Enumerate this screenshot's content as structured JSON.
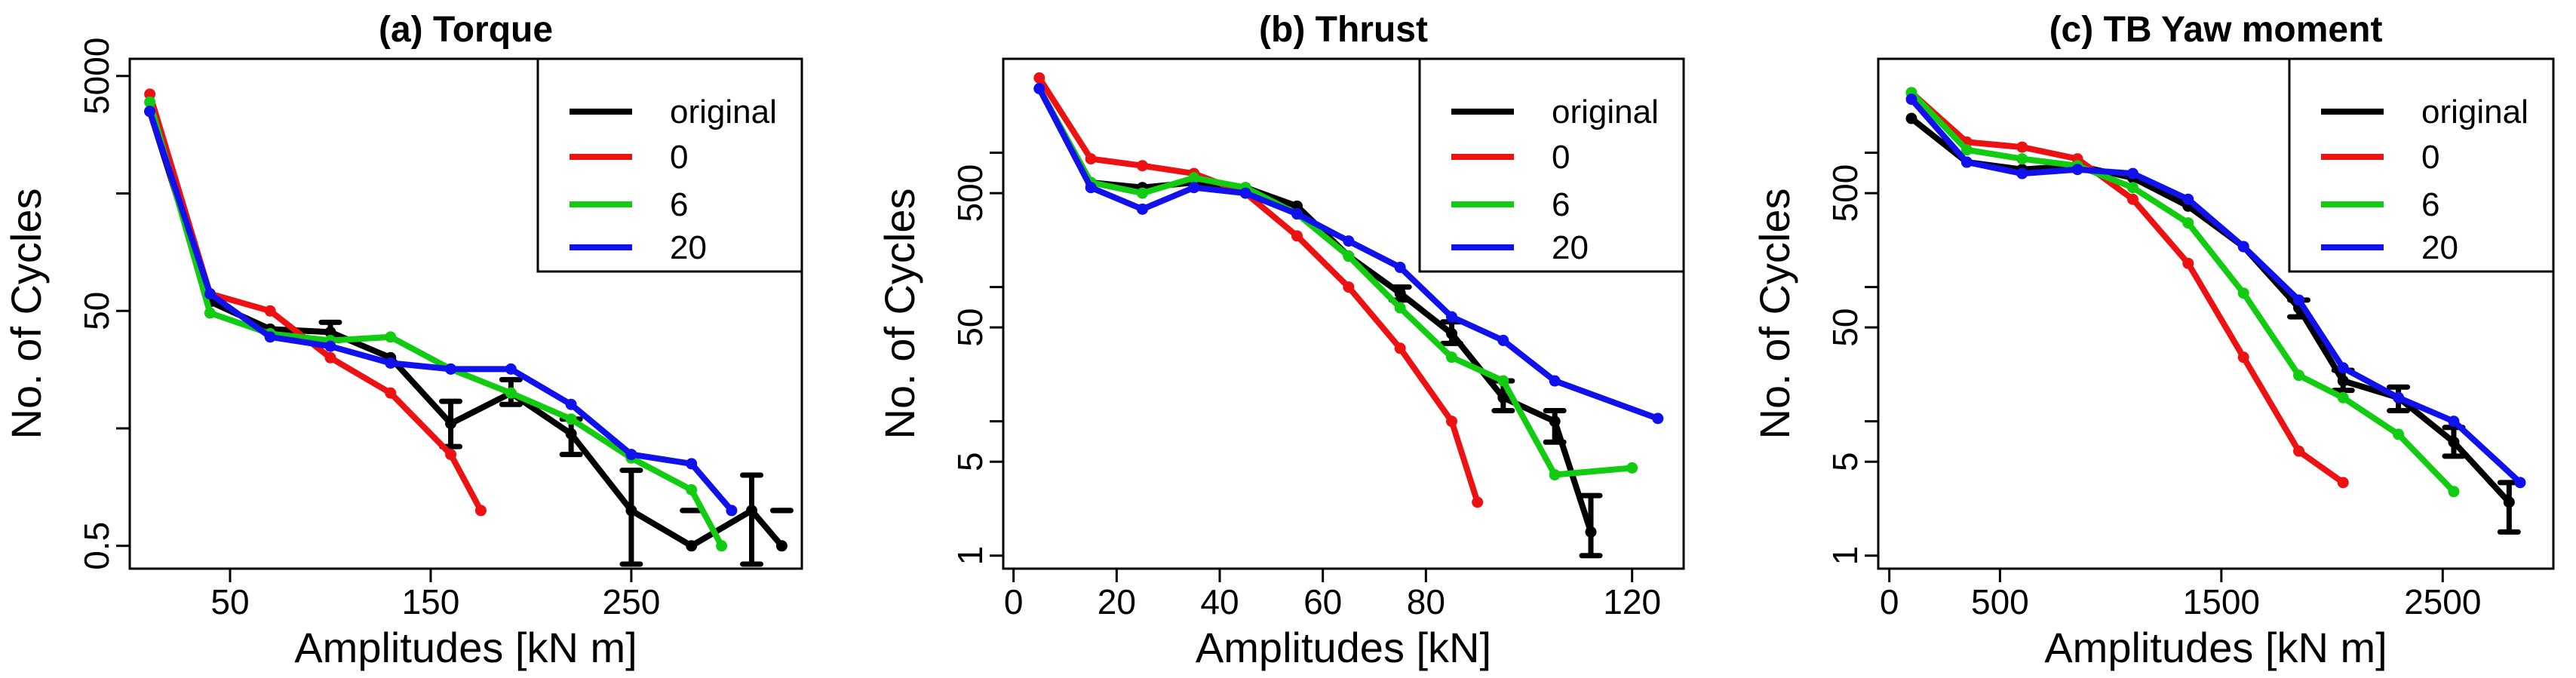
{
  "chart_data": [
    {
      "type": "line",
      "title": "(a) Torque",
      "xlabel": "Amplitudes [kN m]",
      "ylabel": "No. of Cycles",
      "yscale": "log",
      "xlim": [
        0,
        335
      ],
      "ylim": [
        0.32,
        7000
      ],
      "xticks": [
        50,
        150,
        250
      ],
      "xtick_labels": [
        "50",
        "150",
        "250"
      ],
      "yticks": [
        0.5,
        50,
        5000
      ],
      "ytick_labels": [
        "0.5",
        "50",
        "5000"
      ],
      "legend": {
        "position": "top-right",
        "entries": [
          "original",
          "0",
          "6",
          "20"
        ]
      },
      "series": [
        {
          "name": "original",
          "color": "#000000",
          "x": [
            10,
            40,
            70,
            100,
            130,
            160,
            190,
            220,
            250,
            280,
            310,
            325
          ],
          "y": [
            2500,
            60,
            35,
            33,
            20,
            5.5,
            10,
            4.5,
            1.0,
            0.5,
            1.0,
            0.5
          ],
          "error_bars": [
            {
              "x": 100,
              "lo": 28,
              "hi": 40
            },
            {
              "x": 160,
              "lo": 3.5,
              "hi": 8.5
            },
            {
              "x": 190,
              "lo": 8,
              "hi": 13
            },
            {
              "x": 220,
              "lo": 3.0,
              "hi": 6.0
            },
            {
              "x": 250,
              "lo": 0.35,
              "hi": 2.2
            },
            {
              "x": 280,
              "lo": 1.0,
              "hi": 1.0
            },
            {
              "x": 310,
              "lo": 0.35,
              "hi": 2.0
            },
            {
              "x": 325,
              "lo": 1.0,
              "hi": 1.0
            }
          ]
        },
        {
          "name": "0",
          "color": "#ee1111",
          "x": [
            10,
            40,
            70,
            100,
            130,
            160,
            175
          ],
          "y": [
            3500,
            70,
            50,
            20,
            10,
            3.0,
            1.0
          ]
        },
        {
          "name": "6",
          "color": "#11cc11",
          "x": [
            10,
            40,
            70,
            100,
            130,
            160,
            190,
            220,
            250,
            280,
            295
          ],
          "y": [
            3000,
            48,
            32,
            28,
            30,
            16,
            10,
            6,
            2.8,
            1.5,
            0.5
          ]
        },
        {
          "name": "20",
          "color": "#1111ee",
          "x": [
            10,
            40,
            70,
            100,
            130,
            160,
            190,
            220,
            250,
            280,
            300
          ],
          "y": [
            2500,
            70,
            30,
            25,
            18,
            16,
            16,
            8,
            3.0,
            2.5,
            1.0
          ]
        }
      ]
    },
    {
      "type": "line",
      "title": "(b) Thrust",
      "xlabel": "Amplitudes [kN]",
      "ylabel": "No. of Cycles",
      "yscale": "log",
      "xlim": [
        -2,
        130
      ],
      "ylim": [
        0.8,
        5000
      ],
      "xticks": [
        0,
        20,
        40,
        60,
        80,
        120
      ],
      "xtick_labels": [
        "0",
        "20",
        "40",
        "60",
        "80",
        "120"
      ],
      "yticks": [
        1,
        5,
        50,
        500
      ],
      "ytick_labels": [
        "1",
        "5",
        "50",
        "500"
      ],
      "legend": {
        "position": "top-right",
        "entries": [
          "original",
          "0",
          "6",
          "20"
        ]
      },
      "series": [
        {
          "name": "original",
          "color": "#000000",
          "x": [
            5,
            15,
            25,
            35,
            45,
            55,
            65,
            75,
            85,
            95,
            105,
            112
          ],
          "y": [
            3000,
            600,
            550,
            600,
            550,
            400,
            170,
            90,
            45,
            15,
            10,
            1.5
          ],
          "error_bars": [
            {
              "x": 75,
              "lo": 80,
              "hi": 100
            },
            {
              "x": 85,
              "lo": 38,
              "hi": 55
            },
            {
              "x": 95,
              "lo": 12,
              "hi": 20
            },
            {
              "x": 105,
              "lo": 7,
              "hi": 12
            },
            {
              "x": 112,
              "lo": 1.0,
              "hi": 2.8
            }
          ]
        },
        {
          "name": "0",
          "color": "#ee1111",
          "x": [
            5,
            15,
            25,
            35,
            45,
            55,
            65,
            75,
            85,
            90
          ],
          "y": [
            3600,
            900,
            800,
            700,
            500,
            240,
            100,
            35,
            10,
            2.5
          ]
        },
        {
          "name": "6",
          "color": "#11cc11",
          "x": [
            5,
            15,
            25,
            35,
            45,
            55,
            65,
            75,
            85,
            95,
            105,
            120
          ],
          "y": [
            3000,
            600,
            500,
            650,
            550,
            350,
            170,
            70,
            30,
            20,
            4.0,
            4.5
          ]
        },
        {
          "name": "20",
          "color": "#1111ee",
          "x": [
            5,
            15,
            25,
            35,
            45,
            55,
            65,
            75,
            85,
            95,
            105,
            125
          ],
          "y": [
            3000,
            550,
            380,
            550,
            500,
            350,
            220,
            140,
            60,
            40,
            20,
            10.5
          ]
        }
      ]
    },
    {
      "type": "line",
      "title": "(c) TB Yaw moment",
      "xlabel": "Amplitudes [kN m]",
      "ylabel": "No. of Cycles",
      "yscale": "log",
      "xlim": [
        -50,
        3000
      ],
      "ylim": [
        0.8,
        5000
      ],
      "xticks": [
        0,
        500,
        1500,
        2500
      ],
      "xtick_labels": [
        "0",
        "500",
        "1500",
        "2500"
      ],
      "yticks": [
        1,
        5,
        50,
        500
      ],
      "ytick_labels": [
        "1",
        "5",
        "50",
        "500"
      ],
      "legend": {
        "position": "top-right",
        "entries": [
          "original",
          "0",
          "6",
          "20"
        ]
      },
      "series": [
        {
          "name": "original",
          "color": "#000000",
          "x": [
            100,
            350,
            600,
            850,
            1100,
            1350,
            1600,
            1850,
            2050,
            2300,
            2550,
            2800
          ],
          "y": [
            1800,
            850,
            750,
            800,
            650,
            400,
            200,
            70,
            20,
            15,
            7,
            2.5
          ],
          "error_bars": [
            {
              "x": 1850,
              "lo": 60,
              "hi": 80
            },
            {
              "x": 2050,
              "lo": 17,
              "hi": 24
            },
            {
              "x": 2300,
              "lo": 12,
              "hi": 18
            },
            {
              "x": 2550,
              "lo": 5.5,
              "hi": 9
            },
            {
              "x": 2800,
              "lo": 1.5,
              "hi": 3.5
            }
          ]
        },
        {
          "name": "0",
          "color": "#ee1111",
          "x": [
            100,
            350,
            600,
            850,
            1100,
            1350,
            1600,
            1850,
            2050
          ],
          "y": [
            2800,
            1200,
            1100,
            900,
            450,
            150,
            30,
            6,
            3.5
          ]
        },
        {
          "name": "6",
          "color": "#11cc11",
          "x": [
            100,
            350,
            600,
            850,
            1100,
            1350,
            1600,
            1850,
            2050,
            2300,
            2550
          ],
          "y": [
            2800,
            1050,
            900,
            800,
            550,
            300,
            90,
            22,
            15,
            8,
            3
          ]
        },
        {
          "name": "20",
          "color": "#1111ee",
          "x": [
            100,
            350,
            600,
            850,
            1100,
            1350,
            1600,
            1850,
            2050,
            2300,
            2550,
            2850
          ],
          "y": [
            2500,
            850,
            700,
            750,
            700,
            450,
            200,
            80,
            25,
            15,
            10,
            3.5
          ]
        }
      ]
    }
  ]
}
